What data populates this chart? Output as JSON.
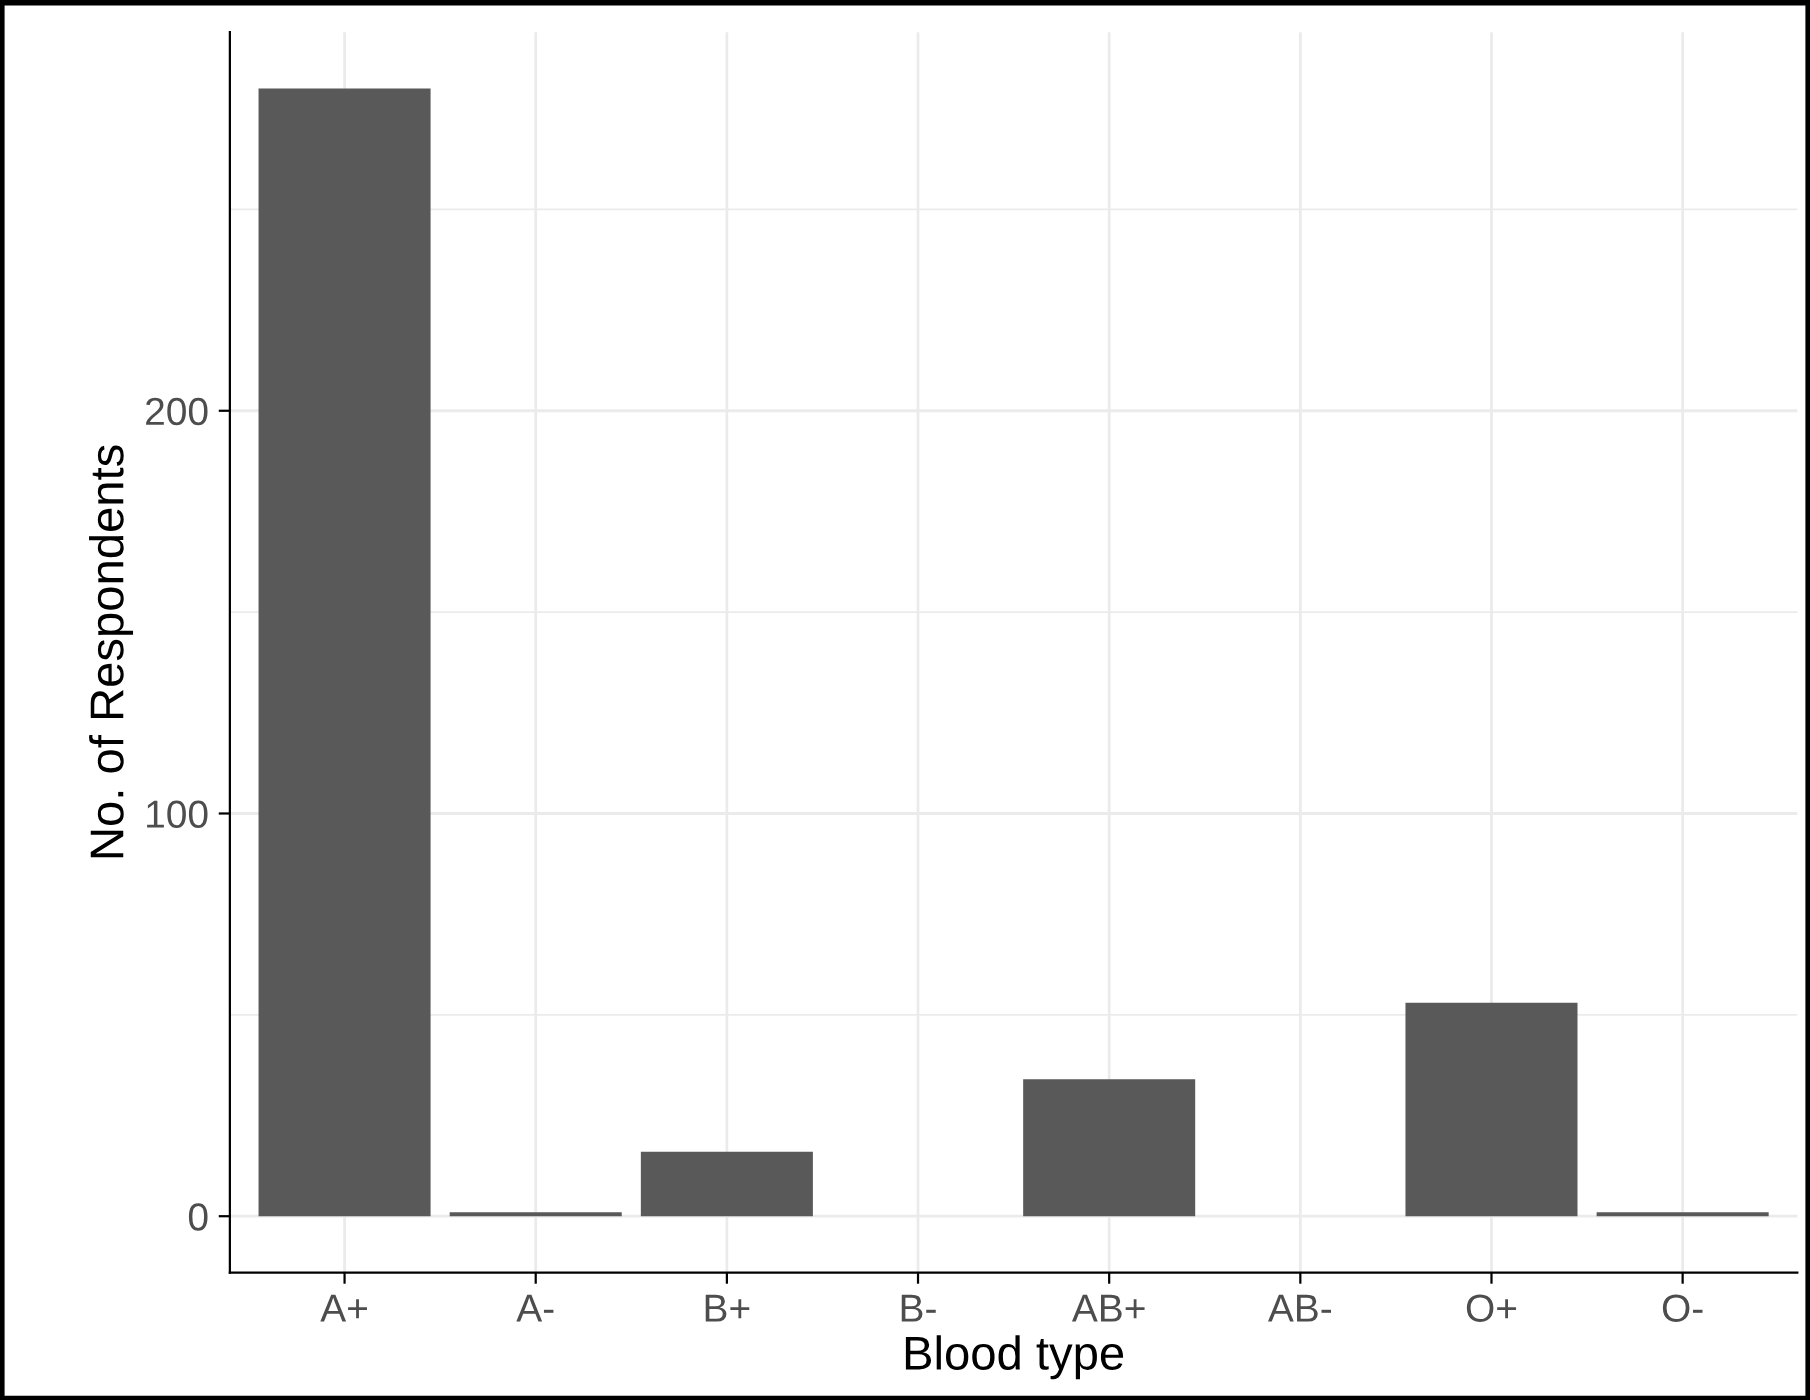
{
  "chart_data": {
    "type": "bar",
    "xlabel": "Blood type",
    "ylabel": "No. of Respondents",
    "categories": [
      "A+",
      "A-",
      "B+",
      "B-",
      "AB+",
      "AB-",
      "O+",
      "O-"
    ],
    "values": [
      280,
      1,
      16,
      0,
      34,
      0,
      53,
      1
    ],
    "color": "#595959",
    "ylim": [
      -14,
      294
    ],
    "yticks": [
      0,
      100,
      200
    ],
    "grid": true
  }
}
